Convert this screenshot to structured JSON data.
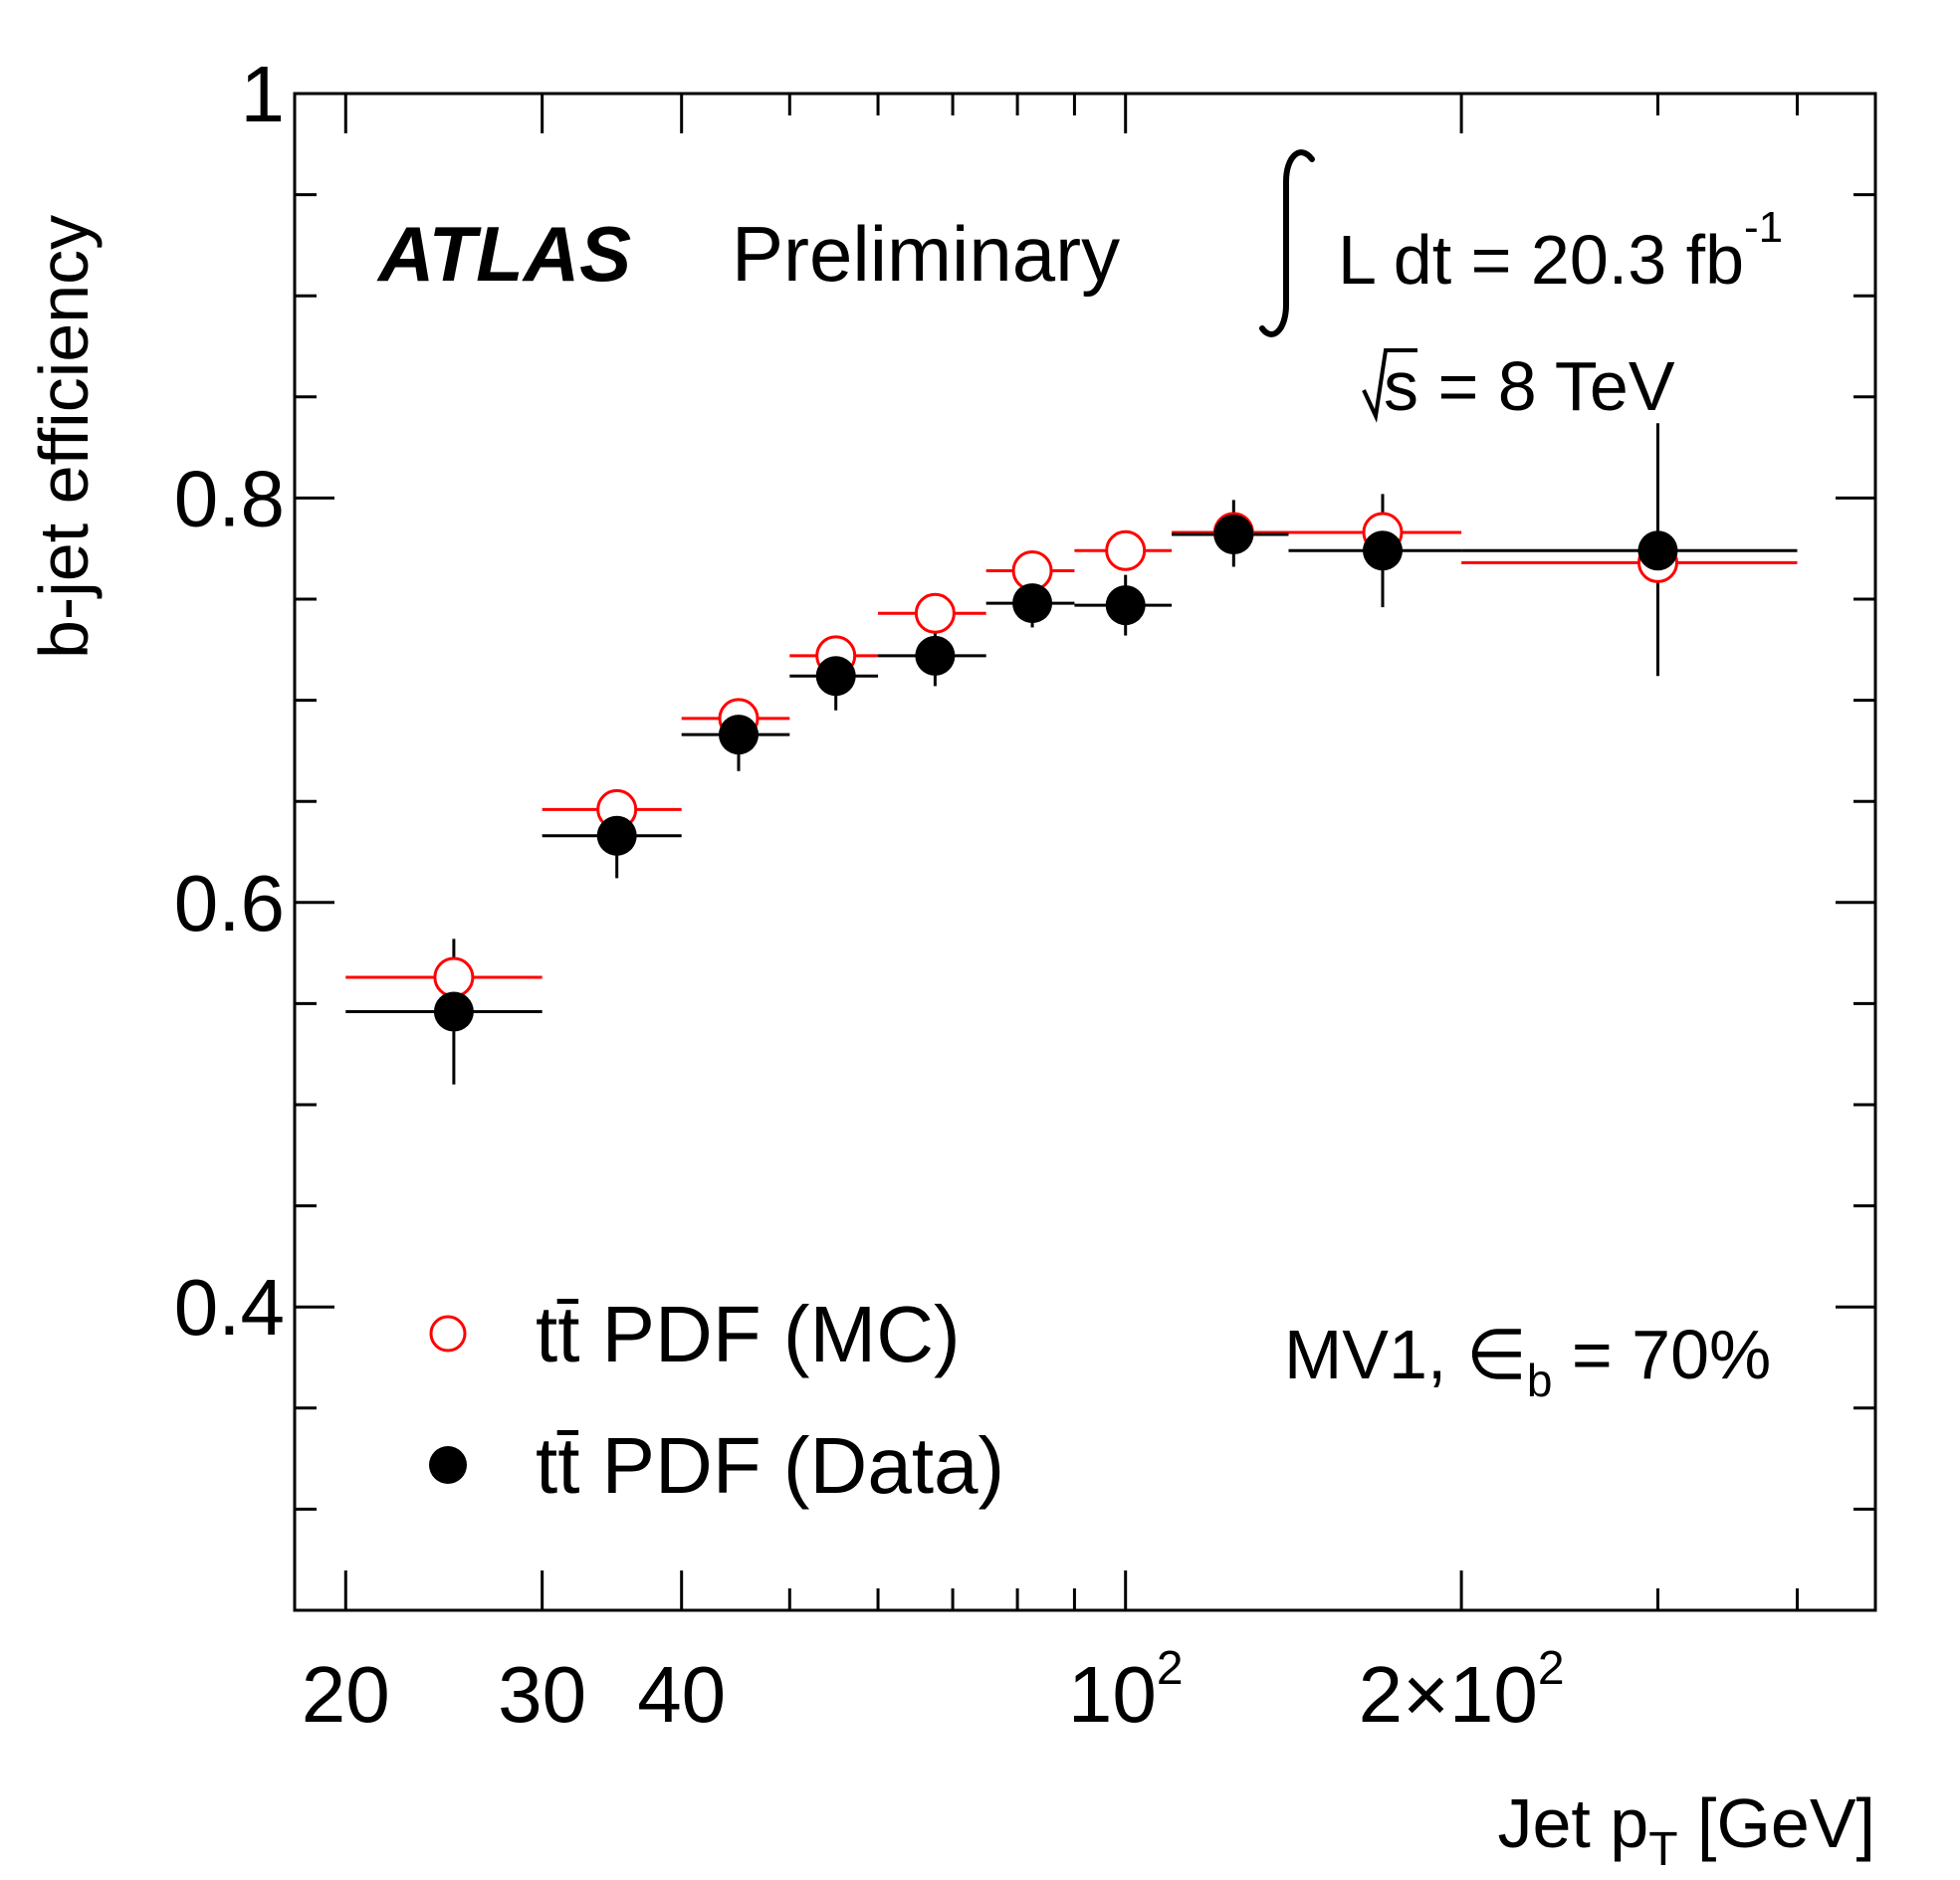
{
  "chart_data": {
    "type": "scatter",
    "xscale": "log",
    "xlim": [
      18,
      470
    ],
    "ylim": [
      0.25,
      1.0
    ],
    "xlabel": {
      "main": "Jet p",
      "sub": "T",
      "unit": " [GeV]"
    },
    "ylabel": "b-jet efficiency",
    "xticks": [
      {
        "value": 20,
        "base": "20",
        "exp": ""
      },
      {
        "value": 30,
        "base": "30",
        "exp": ""
      },
      {
        "value": 40,
        "base": "40",
        "exp": ""
      },
      {
        "value": 100,
        "base": "10",
        "exp": "2"
      },
      {
        "value": 200,
        "base": "2×10",
        "exp": "2"
      }
    ],
    "yticks": [
      {
        "value": 0.4,
        "label": "0.4"
      },
      {
        "value": 0.6,
        "label": "0.6"
      },
      {
        "value": 0.8,
        "label": "0.8"
      },
      {
        "value": 1.0,
        "label": "1"
      }
    ],
    "annotations": {
      "experiment": "ATLAS",
      "status": "Preliminary",
      "lumi_prefix": "L dt = 20.3 fb",
      "lumi_exp": "-1",
      "energy": "s = 8 TeV",
      "tagger_prefix": "MV1, ",
      "tagger_symbol": "∈",
      "tagger_sub": "b",
      "tagger_suffix": " = 70%"
    },
    "series": [
      {
        "name": "tt̄ PDF (MC)",
        "marker": "open-circle",
        "color": "#ff0000",
        "points": [
          {
            "x": 25,
            "xlo": 20,
            "xhi": 30,
            "y": 0.563
          },
          {
            "x": 35,
            "xlo": 30,
            "xhi": 40,
            "y": 0.646
          },
          {
            "x": 45,
            "xlo": 40,
            "xhi": 50,
            "y": 0.691
          },
          {
            "x": 55,
            "xlo": 50,
            "xhi": 60,
            "y": 0.722
          },
          {
            "x": 67.5,
            "xlo": 60,
            "xhi": 75,
            "y": 0.743
          },
          {
            "x": 82.5,
            "xlo": 75,
            "xhi": 90,
            "y": 0.764
          },
          {
            "x": 100,
            "xlo": 90,
            "xhi": 110,
            "y": 0.774
          },
          {
            "x": 125,
            "xlo": 110,
            "xhi": 140,
            "y": 0.783
          },
          {
            "x": 170,
            "xlo": 140,
            "xhi": 200,
            "y": 0.783
          },
          {
            "x": 300,
            "xlo": 200,
            "xhi": 400,
            "y": 0.768
          }
        ]
      },
      {
        "name": "tt̄ PDF (Data)",
        "marker": "filled-circle",
        "color": "#000000",
        "points": [
          {
            "x": 25,
            "xlo": 20,
            "xhi": 30,
            "y": 0.546,
            "ylo": 0.51,
            "yhi": 0.582
          },
          {
            "x": 35,
            "xlo": 30,
            "xhi": 40,
            "y": 0.633,
            "ylo": 0.612,
            "yhi": 0.655
          },
          {
            "x": 45,
            "xlo": 40,
            "xhi": 50,
            "y": 0.683,
            "ylo": 0.665,
            "yhi": 0.7
          },
          {
            "x": 55,
            "xlo": 50,
            "xhi": 60,
            "y": 0.712,
            "ylo": 0.695,
            "yhi": 0.728
          },
          {
            "x": 67.5,
            "xlo": 60,
            "xhi": 75,
            "y": 0.722,
            "ylo": 0.707,
            "yhi": 0.737
          },
          {
            "x": 82.5,
            "xlo": 75,
            "xhi": 90,
            "y": 0.748,
            "ylo": 0.736,
            "yhi": 0.76
          },
          {
            "x": 100,
            "xlo": 90,
            "xhi": 110,
            "y": 0.747,
            "ylo": 0.732,
            "yhi": 0.762
          },
          {
            "x": 125,
            "xlo": 110,
            "xhi": 140,
            "y": 0.782,
            "ylo": 0.766,
            "yhi": 0.799
          },
          {
            "x": 170,
            "xlo": 140,
            "xhi": 200,
            "y": 0.774,
            "ylo": 0.746,
            "yhi": 0.802
          },
          {
            "x": 300,
            "xlo": 200,
            "xhi": 400,
            "y": 0.774,
            "ylo": 0.712,
            "yhi": 0.837
          }
        ]
      }
    ],
    "legend_placement": "bottom-left"
  }
}
